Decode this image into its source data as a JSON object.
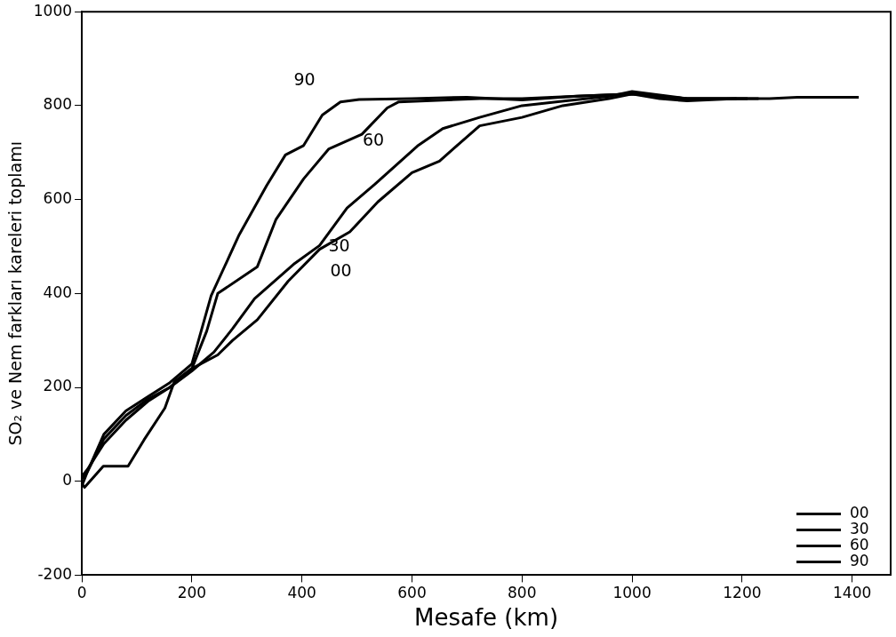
{
  "chart_data": {
    "type": "line",
    "xlabel": "Mesafe (km)",
    "ylabel": "SO₂ ve Nem farkları kareleri toplamı",
    "xlim": [
      0,
      1470
    ],
    "xticks": [
      0,
      200,
      400,
      600,
      800,
      1000,
      1200,
      1400
    ],
    "ylim": [
      -200,
      1000
    ],
    "yticks": [
      -200,
      0,
      200,
      400,
      600,
      800,
      1000
    ],
    "grid": false,
    "legend": "bottom right",
    "marker": "none",
    "line_style": "solid",
    "series": [
      {
        "name": "00",
        "color": "#000000",
        "x": [
          0,
          5,
          39,
          84,
          113,
          151,
          168,
          197,
          247,
          274,
          319,
          375,
          432,
          487,
          538,
          600,
          650,
          723,
          800,
          874,
          958,
          1000,
          1050,
          1100,
          1190
        ],
        "values": [
          -5,
          -13,
          32,
          32,
          88,
          156,
          212,
          238,
          269,
          300,
          344,
          426,
          494,
          531,
          595,
          657,
          682,
          757,
          775,
          800,
          815,
          825,
          815,
          810,
          815
        ]
      },
      {
        "name": "30",
        "color": "#000000",
        "x": [
          0,
          10,
          40,
          80,
          120,
          160,
          200,
          240,
          274,
          314,
          387,
          432,
          482,
          533,
          610,
          656,
          723,
          800,
          880,
          960,
          1000,
          1100,
          1210
        ],
        "values": [
          10,
          25,
          80,
          130,
          170,
          200,
          235,
          275,
          325,
          389,
          464,
          502,
          582,
          633,
          714,
          751,
          775,
          800,
          810,
          820,
          830,
          815,
          815
        ]
      },
      {
        "name": "60",
        "color": "#000000",
        "x": [
          0,
          10,
          40,
          80,
          120,
          160,
          200,
          227,
          247,
          319,
          353,
          403,
          449,
          509,
          555,
          576,
          723,
          800,
          900,
          1000,
          1100,
          1230
        ],
        "values": [
          5,
          20,
          90,
          140,
          175,
          200,
          240,
          320,
          400,
          457,
          558,
          644,
          708,
          739,
          795,
          808,
          815,
          815,
          820,
          825,
          815,
          815
        ]
      },
      {
        "name": "90",
        "color": "#000000",
        "x": [
          0,
          10,
          40,
          80,
          120,
          160,
          200,
          235,
          286,
          336,
          370,
          403,
          437,
          470,
          504,
          600,
          700,
          800,
          900,
          1000,
          1100,
          1250,
          1300,
          1350,
          1412
        ],
        "values": [
          -10,
          20,
          100,
          150,
          180,
          210,
          250,
          395,
          525,
          630,
          695,
          715,
          780,
          808,
          813,
          815,
          818,
          812,
          820,
          825,
          815,
          815,
          818,
          818,
          818
        ]
      }
    ],
    "annotations": [
      {
        "text": "90",
        "x": 437,
        "y": 780
      },
      {
        "text": "60",
        "x": 449,
        "y": 708
      },
      {
        "text": "30",
        "x": 387,
        "y": 464
      },
      {
        "text": "00",
        "x": 487,
        "y": 531
      }
    ]
  }
}
